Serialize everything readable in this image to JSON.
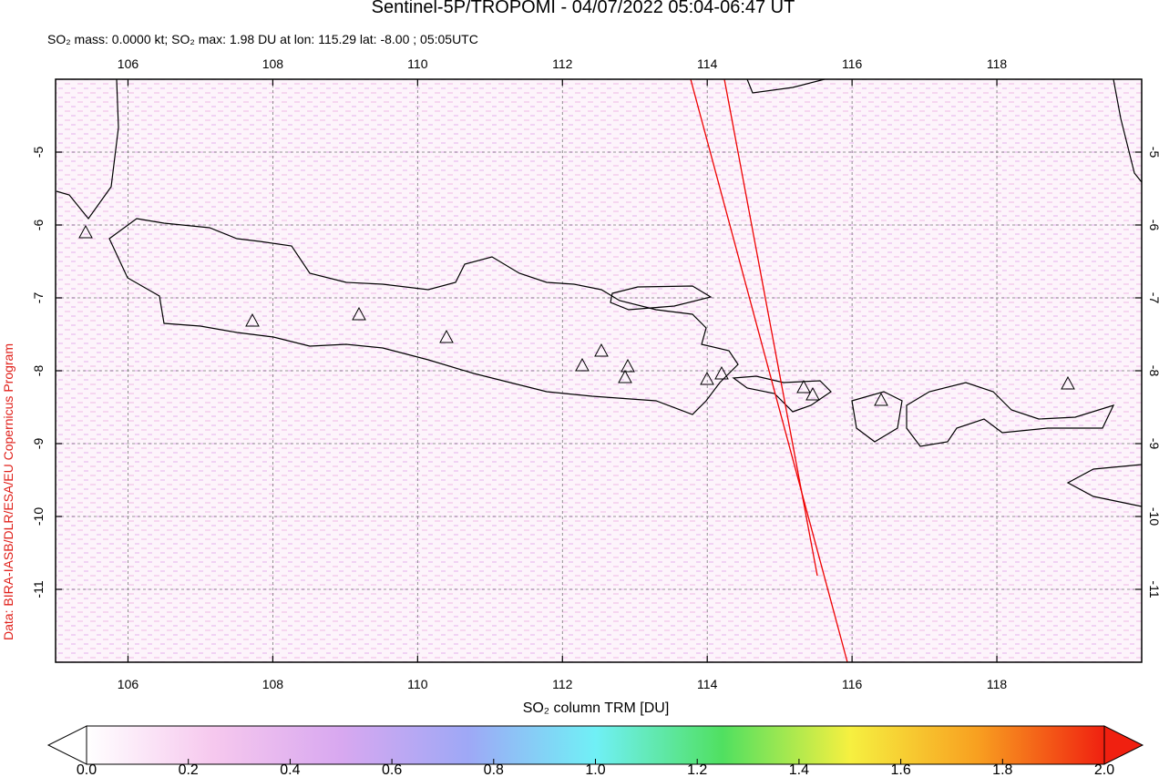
{
  "chart_data": {
    "type": "map",
    "title": "Sentinel-5P/TROPOMI - 04/07/2022 05:04-06:47 UT",
    "subtitle": "SO₂ mass: 0.0000 kt; SO₂ max: 1.98 DU at lon: 115.29 lat: -8.00 ; 05:05UTC",
    "credit": "Data: BIRA-IASB/DLR/ESA/EU Copernicus Program",
    "xlim": [
      105,
      120
    ],
    "ylim": [
      -12,
      -4
    ],
    "xticks": [
      106,
      108,
      110,
      112,
      114,
      116,
      118
    ],
    "yticks": [
      -5,
      -6,
      -7,
      -8,
      -9,
      -10,
      -11
    ],
    "grid": true,
    "colorbar": {
      "label": "SO₂ column TRM [DU]",
      "clim": [
        0,
        2
      ],
      "colors": [
        "#ffffff",
        "#f6c8ee",
        "#d8a8f0",
        "#9ea8f6",
        "#70f0f6",
        "#50e060",
        "#f6f040",
        "#f8a020",
        "#f02010"
      ],
      "ticks": [
        {
          "value": 0,
          "label": "0.0"
        },
        {
          "value": 0.2,
          "label": "0.2"
        },
        {
          "value": 0.4,
          "label": "0.4"
        },
        {
          "value": 0.6,
          "label": "0.6"
        },
        {
          "value": 0.8,
          "label": "0.8"
        },
        {
          "value": 1,
          "label": "1.0"
        },
        {
          "value": 1.2,
          "label": "1.2"
        },
        {
          "value": 1.4,
          "label": "1.4"
        },
        {
          "value": 1.6,
          "label": "1.6"
        },
        {
          "value": 1.8,
          "label": "1.8"
        },
        {
          "value": 2,
          "label": "2.0"
        }
      ]
    }
  }
}
